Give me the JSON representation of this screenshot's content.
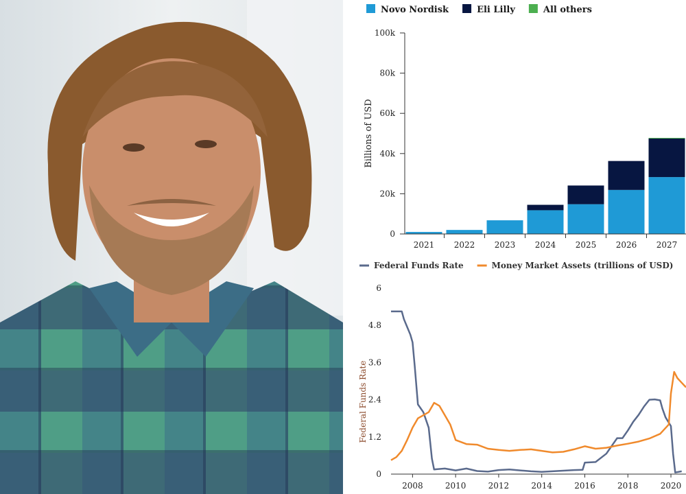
{
  "photo": {
    "subject": "portrait",
    "colors": {
      "background": "#dfe5e8",
      "hair": "#8a5a2e",
      "skin": "#c98e6b",
      "beard": "#a67a55",
      "shirt_green": "#4f9e86",
      "shirt_navy": "#2f3f6a"
    }
  },
  "chart_data": [
    {
      "type": "bar",
      "stacked": true,
      "categories": [
        "2021",
        "2022",
        "2023",
        "2024",
        "2025",
        "2026",
        "2027"
      ],
      "series": [
        {
          "name": "Novo Nordisk",
          "color": "#1f9ad6",
          "values": [
            1000,
            2000,
            6800,
            11800,
            14800,
            21900,
            28300
          ]
        },
        {
          "name": "Eli Lilly",
          "color": "#071641",
          "values": [
            0,
            0,
            0,
            2700,
            9300,
            14400,
            19200
          ]
        },
        {
          "name": "All others",
          "color": "#4caf50",
          "values": [
            0,
            0,
            0,
            0,
            0,
            0,
            300
          ]
        }
      ],
      "ylabel": "Billions of USD",
      "ylim": [
        0,
        100000
      ],
      "y_ticks": [
        "0",
        "20k",
        "40k",
        "60k",
        "80k",
        "100k"
      ],
      "y_tick_values": [
        0,
        20000,
        40000,
        60000,
        80000,
        100000
      ],
      "legend_position": "top-left",
      "grid": false
    },
    {
      "type": "line",
      "series": [
        {
          "name": "Federal Funds Rate",
          "color": "#5a6a8c",
          "x": [
            2007.0,
            2007.5,
            2007.6,
            2007.75,
            2007.9,
            2008.0,
            2008.1,
            2008.25,
            2008.5,
            2008.75,
            2008.9,
            2009.0,
            2009.5,
            2010.0,
            2010.5,
            2011.0,
            2011.5,
            2012.0,
            2012.5,
            2013.0,
            2013.5,
            2014.0,
            2014.5,
            2015.0,
            2015.5,
            2015.9,
            2016.0,
            2016.5,
            2017.0,
            2017.25,
            2017.5,
            2017.75,
            2018.0,
            2018.25,
            2018.5,
            2018.75,
            2019.0,
            2019.25,
            2019.5,
            2019.6,
            2019.75,
            2020.0,
            2020.1,
            2020.2,
            2020.5
          ],
          "y": [
            5.25,
            5.25,
            5.0,
            4.75,
            4.5,
            4.25,
            3.5,
            2.25,
            2.0,
            1.5,
            0.5,
            0.15,
            0.18,
            0.12,
            0.18,
            0.1,
            0.08,
            0.13,
            0.15,
            0.12,
            0.09,
            0.07,
            0.09,
            0.11,
            0.13,
            0.14,
            0.37,
            0.39,
            0.66,
            0.91,
            1.16,
            1.16,
            1.41,
            1.69,
            1.91,
            2.18,
            2.4,
            2.41,
            2.38,
            2.12,
            1.83,
            1.55,
            0.65,
            0.05,
            0.09
          ]
        },
        {
          "name": "Money Market Assets (trillions of USD)",
          "color": "#f08a2c",
          "x": [
            2007.0,
            2007.25,
            2007.5,
            2007.75,
            2008.0,
            2008.25,
            2008.5,
            2008.75,
            2009.0,
            2009.25,
            2009.5,
            2009.75,
            2010.0,
            2010.5,
            2011.0,
            2011.5,
            2012.0,
            2012.5,
            2013.0,
            2013.5,
            2014.0,
            2014.5,
            2015.0,
            2015.5,
            2016.0,
            2016.5,
            2017.0,
            2017.5,
            2018.0,
            2018.5,
            2019.0,
            2019.5,
            2019.9,
            2020.0,
            2020.15,
            2020.3,
            2020.5,
            2020.7
          ],
          "y": [
            0.45,
            0.55,
            0.75,
            1.1,
            1.5,
            1.8,
            1.9,
            2.0,
            2.3,
            2.2,
            1.9,
            1.6,
            1.1,
            0.97,
            0.95,
            0.82,
            0.78,
            0.75,
            0.78,
            0.8,
            0.75,
            0.7,
            0.72,
            0.8,
            0.9,
            0.82,
            0.85,
            0.92,
            0.98,
            1.05,
            1.15,
            1.3,
            1.6,
            2.6,
            3.3,
            3.1,
            2.95,
            2.8
          ]
        }
      ],
      "ylabel": "Federal Funds Rate",
      "ylim": [
        0,
        6
      ],
      "y_ticks": [
        "0",
        "1.2",
        "2.4",
        "3.6",
        "4.8",
        "6"
      ],
      "y_tick_values": [
        0,
        1.2,
        2.4,
        3.6,
        4.8,
        6
      ],
      "x_ticks": [
        "2008",
        "2010",
        "2012",
        "2014",
        "2016",
        "2018",
        "2020"
      ],
      "x_tick_values": [
        2008,
        2010,
        2012,
        2014,
        2016,
        2018,
        2020
      ],
      "xlim": [
        2007.0,
        2020.7
      ],
      "legend_position": "top-left",
      "grid": false
    }
  ]
}
